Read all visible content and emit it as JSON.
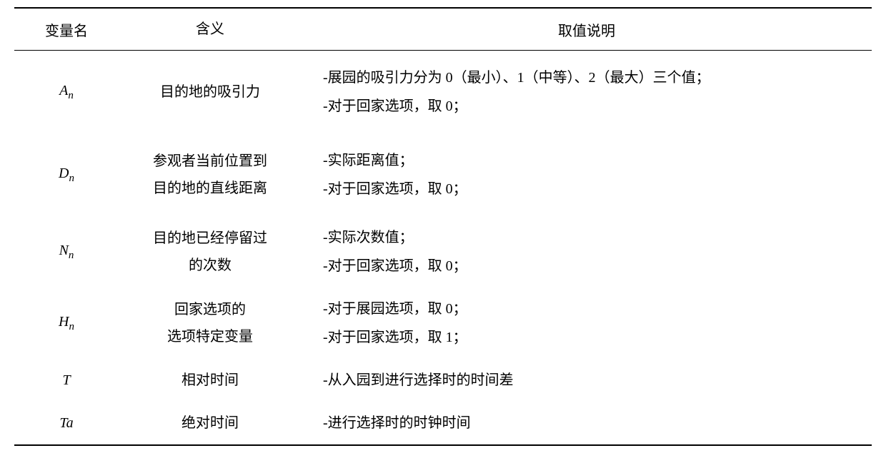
{
  "table": {
    "headers": {
      "var": "变量名",
      "meaning": "含义",
      "desc": "取值说明"
    },
    "rows": [
      {
        "varMain": "A",
        "varSub": "n",
        "meaningL1": "目的地的吸引力",
        "meaningL2": "",
        "descL1": "-展园的吸引力分为 0（最小）、1（中等）、2（最大）三个值；",
        "descL2": "-对于回家选项，取 0；",
        "extraPad": true
      },
      {
        "varMain": "D",
        "varSub": "n",
        "meaningL1": "参观者当前位置到",
        "meaningL2": "目的地的直线距离",
        "descL1": "-实际距离值；",
        "descL2": "-对于回家选项，取 0；",
        "extraPad": true
      },
      {
        "varMain": "N",
        "varSub": "n",
        "meaningL1": "目的地已经停留过",
        "meaningL2": "的次数",
        "descL1": "-实际次数值；",
        "descL2": "-对于回家选项，取 0；",
        "extraPad": false
      },
      {
        "varMain": "H",
        "varSub": "n",
        "meaningL1": "回家选项的",
        "meaningL2": "选项特定变量",
        "descL1": "-对于展园选项，取 0；",
        "descL2": "-对于回家选项，取 1；",
        "extraPad": false
      },
      {
        "varMain": "T",
        "varSub": "",
        "meaningL1": "相对时间",
        "meaningL2": "",
        "descL1": "-从入园到进行选择时的时间差",
        "descL2": "",
        "extraPad": false
      },
      {
        "varMain": "Ta",
        "varSub": "",
        "meaningL1": "绝对时间",
        "meaningL2": "",
        "descL1": "-进行选择时的时钟时间",
        "descL2": "",
        "extraPad": false
      }
    ]
  }
}
